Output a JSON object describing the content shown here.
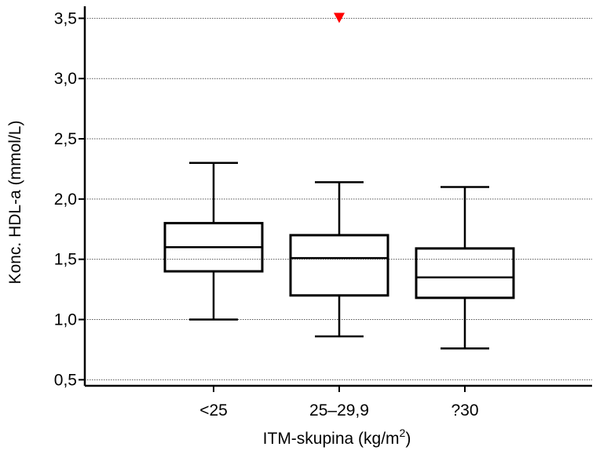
{
  "chart_data": {
    "type": "box",
    "title": "",
    "xlabel": "ITM-skupina (kg/m",
    "xlabel_sup": "2",
    "xlabel_suffix": ")",
    "ylabel": "Konc. HDL-a (mmol/L)",
    "ylim": [
      0.45,
      3.6
    ],
    "yticks": [
      0.5,
      1.0,
      1.5,
      2.0,
      2.5,
      3.0,
      3.5
    ],
    "ytick_labels": [
      "0,5",
      "1,0",
      "1,5",
      "2,0",
      "2,5",
      "3,0",
      "3,5"
    ],
    "grid": true,
    "categories": [
      "<25",
      "25–29,9",
      "?30"
    ],
    "boxes": [
      {
        "category": "<25",
        "whisker_low": 1.0,
        "q1": 1.4,
        "median": 1.6,
        "q3": 1.8,
        "whisker_high": 2.3
      },
      {
        "category": "25–29,9",
        "whisker_low": 0.86,
        "q1": 1.2,
        "median": 1.51,
        "q3": 1.7,
        "whisker_high": 2.14
      },
      {
        "category": "?30",
        "whisker_low": 0.76,
        "q1": 1.18,
        "median": 1.35,
        "q3": 1.59,
        "whisker_high": 2.1
      }
    ],
    "outliers": [
      {
        "category": "25–29,9",
        "value": 3.5,
        "color": "#ff0000",
        "marker": "triangle-down"
      }
    ]
  }
}
